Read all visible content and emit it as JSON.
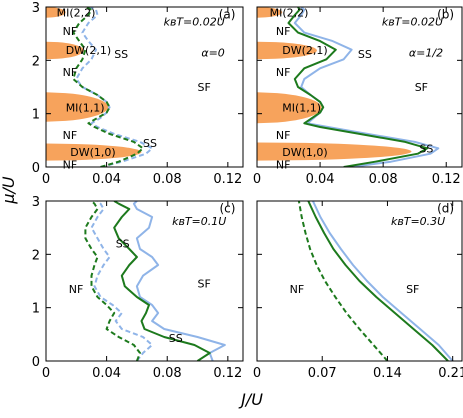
{
  "figure": {
    "ylabel": "μ/U",
    "xlabel": "J/U"
  },
  "colors": {
    "lobe_fill": "#f7a35c",
    "alpha_half_line": "#8fb4e8",
    "alpha_zero_line": "#1d7a1d"
  },
  "chart_data": [
    {
      "type": "line",
      "panel": "a",
      "label": "(a)",
      "annotations": [
        "kBT=0.02U",
        "α=0"
      ],
      "xlim": [
        0,
        0.13
      ],
      "ylim": [
        0,
        3
      ],
      "xticks": [
        "0",
        "0.04",
        "0.08",
        "0.12"
      ],
      "yticks": [
        "0",
        "1",
        "2",
        "3"
      ],
      "region_labels": [
        "MI(2,2)",
        "DW(2,1)",
        "MI(1,1)",
        "DW(1,0)",
        "NF",
        "NF",
        "NF",
        "NF",
        "SS",
        "SS",
        "SF"
      ],
      "lobes": [
        {
          "name": "DW(1,0)",
          "ylow": 0.12,
          "yhigh": 0.44,
          "xmax": 0.063
        },
        {
          "name": "MI(1,1)",
          "ylow": 0.85,
          "yhigh": 1.4,
          "xmax": 0.041
        },
        {
          "name": "DW(2,1)",
          "ylow": 2.02,
          "yhigh": 2.35,
          "xmax": 0.025
        },
        {
          "name": "MI(2,2)",
          "ylow": 2.8,
          "yhigh": 3.0,
          "xmax": 0.013
        }
      ],
      "series": [
        {
          "style": "dashed",
          "x": [
            0.036,
            0.05,
            0.066,
            0.07,
            0.062,
            0.045,
            0.034,
            0.03,
            0.036,
            0.04,
            0.042,
            0.04,
            0.034,
            0.024,
            0.02,
            0.024,
            0.03,
            0.033,
            0.028,
            0.024,
            0.028,
            0.034,
            0.033,
            0.028
          ],
          "y": [
            0.0,
            0.1,
            0.25,
            0.35,
            0.47,
            0.62,
            0.75,
            0.82,
            0.92,
            1.02,
            1.12,
            1.22,
            1.35,
            1.5,
            1.65,
            1.85,
            2.02,
            2.2,
            2.36,
            2.52,
            2.7,
            2.85,
            2.95,
            3.0
          ]
        },
        {
          "style": "dashed",
          "x": [
            0.036,
            0.048,
            0.06,
            0.064,
            0.058,
            0.042,
            0.032,
            0.028,
            0.034,
            0.04,
            0.042,
            0.04,
            0.034,
            0.024,
            0.018,
            0.02,
            0.024,
            0.026,
            0.022,
            0.018,
            0.022,
            0.028,
            0.03,
            0.026
          ],
          "y": [
            0.0,
            0.1,
            0.25,
            0.35,
            0.47,
            0.62,
            0.75,
            0.82,
            0.92,
            1.02,
            1.12,
            1.22,
            1.35,
            1.5,
            1.65,
            1.85,
            2.02,
            2.2,
            2.36,
            2.52,
            2.7,
            2.85,
            2.95,
            3.0
          ]
        }
      ]
    },
    {
      "type": "line",
      "panel": "b",
      "label": "(b)",
      "annotations": [
        "kBT=0.02U",
        "α=1/2"
      ],
      "xlim": [
        0,
        0.13
      ],
      "ylim": [
        0,
        3
      ],
      "xticks": [
        "0",
        "0.04",
        "0.08",
        "0.12"
      ],
      "yticks": [],
      "region_labels": [
        "MI(2,2)",
        "DW(2,1)",
        "MI(1,1)",
        "DW(1,0)",
        "NF",
        "NF",
        "NF",
        "NF",
        "SS",
        "SS",
        "SF"
      ],
      "lobes": [
        {
          "name": "DW(1,0)",
          "ylow": 0.12,
          "yhigh": 0.46,
          "xmax": 0.098
        },
        {
          "name": "MI(1,1)",
          "ylow": 0.82,
          "yhigh": 1.4,
          "xmax": 0.041
        },
        {
          "name": "DW(2,1)",
          "ylow": 2.02,
          "yhigh": 2.35,
          "xmax": 0.038
        },
        {
          "name": "MI(2,2)",
          "ylow": 2.8,
          "yhigh": 3.0,
          "xmax": 0.016
        }
      ],
      "series": [
        {
          "style": "solid",
          "x": [
            0.06,
            0.085,
            0.11,
            0.115,
            0.1,
            0.07,
            0.045,
            0.032,
            0.036,
            0.04,
            0.042,
            0.04,
            0.034,
            0.028,
            0.03,
            0.04,
            0.055,
            0.06,
            0.048,
            0.03,
            0.024,
            0.028,
            0.03,
            0.028
          ],
          "y": [
            0.0,
            0.1,
            0.25,
            0.35,
            0.47,
            0.62,
            0.75,
            0.82,
            0.92,
            1.02,
            1.12,
            1.22,
            1.35,
            1.5,
            1.65,
            1.85,
            2.02,
            2.2,
            2.36,
            2.52,
            2.7,
            2.85,
            2.95,
            3.0
          ]
        },
        {
          "style": "solid",
          "x": [
            0.055,
            0.075,
            0.102,
            0.108,
            0.094,
            0.065,
            0.04,
            0.03,
            0.035,
            0.04,
            0.042,
            0.04,
            0.034,
            0.026,
            0.024,
            0.03,
            0.044,
            0.05,
            0.04,
            0.026,
            0.02,
            0.024,
            0.027,
            0.026
          ],
          "y": [
            0.0,
            0.1,
            0.25,
            0.35,
            0.47,
            0.62,
            0.75,
            0.82,
            0.92,
            1.02,
            1.12,
            1.22,
            1.35,
            1.5,
            1.65,
            1.85,
            2.02,
            2.2,
            2.36,
            2.52,
            2.7,
            2.85,
            2.95,
            3.0
          ]
        }
      ]
    },
    {
      "type": "line",
      "panel": "c",
      "label": "(c)",
      "annotations": [
        "kBT=0.1U"
      ],
      "xlim": [
        0,
        0.13
      ],
      "ylim": [
        0,
        3
      ],
      "xticks": [
        "0",
        "0.04",
        "0.08",
        "0.12"
      ],
      "yticks": [
        "0",
        "1",
        "2",
        "3"
      ],
      "region_labels": [
        "NF",
        "SS",
        "SS",
        "SF"
      ],
      "lobes": [],
      "series": [
        {
          "style": "solid",
          "x": [
            0.11,
            0.108,
            0.118,
            0.1,
            0.078,
            0.07,
            0.074,
            0.07,
            0.062,
            0.06,
            0.064,
            0.074,
            0.07,
            0.062,
            0.06,
            0.068,
            0.07,
            0.06,
            0.058,
            0.06
          ],
          "y": [
            0.0,
            0.15,
            0.3,
            0.45,
            0.6,
            0.75,
            0.9,
            1.05,
            1.2,
            1.4,
            1.6,
            1.8,
            1.95,
            2.1,
            2.3,
            2.5,
            2.7,
            2.85,
            2.95,
            3.0
          ]
        },
        {
          "style": "solid",
          "x": [
            0.1,
            0.108,
            0.098,
            0.078,
            0.065,
            0.063,
            0.066,
            0.068,
            0.06,
            0.052,
            0.05,
            0.055,
            0.06,
            0.055,
            0.048,
            0.045,
            0.05,
            0.055,
            0.048,
            0.045
          ],
          "y": [
            0.0,
            0.15,
            0.3,
            0.45,
            0.6,
            0.75,
            0.9,
            1.05,
            1.2,
            1.4,
            1.6,
            1.8,
            1.95,
            2.1,
            2.3,
            2.5,
            2.7,
            2.85,
            2.95,
            3.0
          ]
        },
        {
          "style": "dashed",
          "x": [
            0.06,
            0.064,
            0.07,
            0.064,
            0.05,
            0.046,
            0.05,
            0.044,
            0.036,
            0.032,
            0.034,
            0.038,
            0.042,
            0.038,
            0.034,
            0.03,
            0.034,
            0.038,
            0.036,
            0.034
          ],
          "y": [
            0.0,
            0.15,
            0.3,
            0.45,
            0.6,
            0.75,
            0.9,
            1.05,
            1.2,
            1.4,
            1.6,
            1.8,
            1.95,
            2.1,
            2.3,
            2.5,
            2.7,
            2.85,
            2.95,
            3.0
          ]
        },
        {
          "style": "dashed",
          "x": [
            0.06,
            0.062,
            0.058,
            0.048,
            0.04,
            0.042,
            0.045,
            0.04,
            0.034,
            0.03,
            0.03,
            0.032,
            0.034,
            0.03,
            0.026,
            0.026,
            0.03,
            0.034,
            0.032,
            0.03
          ],
          "y": [
            0.0,
            0.15,
            0.3,
            0.45,
            0.6,
            0.75,
            0.9,
            1.05,
            1.2,
            1.4,
            1.6,
            1.8,
            1.95,
            2.1,
            2.3,
            2.5,
            2.7,
            2.85,
            2.95,
            3.0
          ]
        }
      ]
    },
    {
      "type": "line",
      "panel": "d",
      "label": "(d)",
      "annotations": [
        "kBT=0.3U"
      ],
      "xlim": [
        0,
        0.22
      ],
      "ylim": [
        0,
        3
      ],
      "xticks": [
        "0",
        "0.07",
        "0.14",
        "0.21"
      ],
      "xtick_values": [
        0,
        0.07,
        0.14,
        0.21
      ],
      "yticks": [],
      "region_labels": [
        "NF",
        "SF"
      ],
      "lobes": [],
      "series": [
        {
          "style": "solid",
          "x": [
            0.21,
            0.195,
            0.175,
            0.155,
            0.135,
            0.118,
            0.103,
            0.09,
            0.078,
            0.068,
            0.06
          ],
          "y": [
            0.0,
            0.3,
            0.6,
            0.9,
            1.2,
            1.5,
            1.8,
            2.1,
            2.4,
            2.7,
            3.0
          ]
        },
        {
          "style": "solid",
          "x": [
            0.205,
            0.188,
            0.168,
            0.148,
            0.128,
            0.11,
            0.095,
            0.082,
            0.072,
            0.063,
            0.055
          ],
          "y": [
            0.0,
            0.3,
            0.6,
            0.9,
            1.2,
            1.5,
            1.8,
            2.1,
            2.4,
            2.7,
            3.0
          ]
        },
        {
          "style": "dashed",
          "x": [
            0.14,
            0.125,
            0.11,
            0.096,
            0.084,
            0.073,
            0.064,
            0.057,
            0.052,
            0.048,
            0.045
          ],
          "y": [
            0.0,
            0.3,
            0.6,
            0.9,
            1.2,
            1.5,
            1.8,
            2.1,
            2.4,
            2.7,
            3.0
          ]
        }
      ]
    }
  ]
}
